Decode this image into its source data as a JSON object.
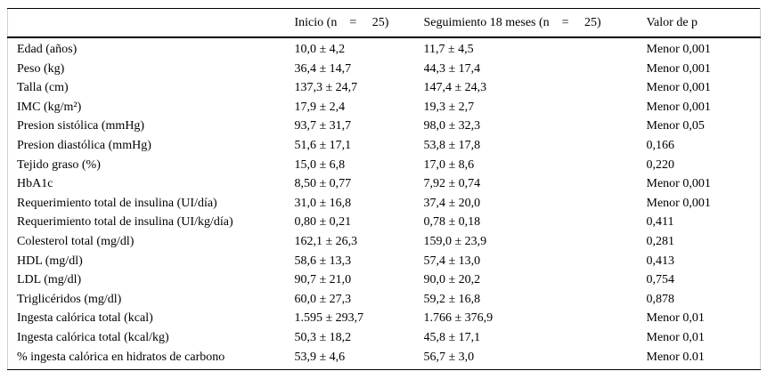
{
  "table": {
    "columns": {
      "variable": "",
      "inicio": "Inicio (n =  25)",
      "seguimiento": "Seguimiento 18 meses (n =  25)",
      "valor_p": "Valor de p"
    },
    "rows": [
      {
        "label": "Edad (años)",
        "inicio": "10,0 ± 4,2",
        "seguimiento": "11,7 ± 4,5",
        "p": "Menor 0,001"
      },
      {
        "label": "Peso (kg)",
        "inicio": "36,4 ± 14,7",
        "seguimiento": "44,3 ± 17,4",
        "p": "Menor 0,001"
      },
      {
        "label": "Talla (cm)",
        "inicio": "137,3 ± 24,7",
        "seguimiento": "147,4 ± 24,3",
        "p": "Menor 0,001"
      },
      {
        "label": "IMC (kg/m²)",
        "inicio": "17,9 ± 2,4",
        "seguimiento": "19,3 ± 2,7",
        "p": "Menor 0,001"
      },
      {
        "label": "Presion sistólica (mmHg)",
        "inicio": "93,7 ± 31,7",
        "seguimiento": "98,0 ± 32,3",
        "p": "Menor 0,05"
      },
      {
        "label": "Presion diastólica (mmHg)",
        "inicio": "51,6 ± 17,1",
        "seguimiento": "53,8 ± 17,8",
        "p": "0,166"
      },
      {
        "label": "Tejido graso (%)",
        "inicio": "15,0 ± 6,8",
        "seguimiento": "17,0 ± 8,6",
        "p": "0,220"
      },
      {
        "label": "HbA1c",
        "inicio": "8,50 ± 0,77",
        "seguimiento": "7,92 ± 0,74",
        "p": "Menor 0,001"
      },
      {
        "label": "Requerimiento total de insulina (UI/día)",
        "inicio": "31,0 ± 16,8",
        "seguimiento": "37,4 ± 20,0",
        "p": "Menor 0,001"
      },
      {
        "label": "Requerimiento total de insulina (UI/kg/día)",
        "inicio": "0,80 ± 0,21",
        "seguimiento": "0,78 ± 0,18",
        "p": "0,411"
      },
      {
        "label": "Colesterol total (mg/dl)",
        "inicio": "162,1 ± 26,3",
        "seguimiento": "159,0 ± 23,9",
        "p": "0,281"
      },
      {
        "label": "HDL (mg/dl)",
        "inicio": "58,6 ± 13,3",
        "seguimiento": "57,4 ± 13,0",
        "p": "0,413"
      },
      {
        "label": "LDL (mg/dl)",
        "inicio": "90,7 ± 21,0",
        "seguimiento": "90,0 ± 20,2",
        "p": "0,754"
      },
      {
        "label": "Triglicéridos (mg/dl)",
        "inicio": "60,0 ± 27,3",
        "seguimiento": "59,2 ± 16,8",
        "p": "0,878"
      },
      {
        "label": "Ingesta calórica total (kcal)",
        "inicio": "1.595 ± 293,7",
        "seguimiento": "1.766 ± 376,9",
        "p": "Menor 0,01"
      },
      {
        "label": "Ingesta calórica total (kcal/kg)",
        "inicio": "50,3 ± 18,2",
        "seguimiento": "45,8 ± 17,1",
        "p": "Menor 0,01"
      },
      {
        "label": "% ingesta calórica en hidratos de carbono",
        "inicio": "53,9 ± 4,6",
        "seguimiento": "56,7 ± 3,0",
        "p": "Menor 0.01"
      }
    ]
  },
  "chart_data": {
    "type": "table",
    "title": "",
    "columns": [
      "",
      "Inicio (n = 25)",
      "Seguimiento 18 meses (n = 25)",
      "Valor de p"
    ]
  }
}
